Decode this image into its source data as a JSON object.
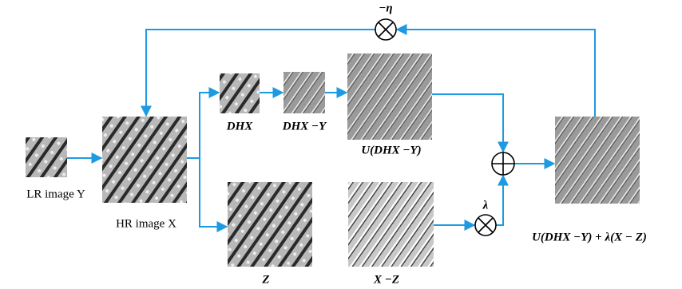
{
  "images": {
    "lr": {
      "label": "LR image Y"
    },
    "hr": {
      "label": "HR image X"
    },
    "dhx": {
      "label": "DHX"
    },
    "dhx_minus_y": {
      "label": "DHX −Y"
    },
    "u_dhx_minus_y": {
      "label": "U(DHX −Y)"
    },
    "z": {
      "label": "Z"
    },
    "x_minus_z": {
      "label": "X −Z"
    },
    "result": {
      "label": "U(DHX −Y) + λ(X − Z)"
    }
  },
  "operators": {
    "top_multiply": {
      "label": "−η"
    },
    "lambda_multiply": {
      "label": "λ"
    }
  }
}
